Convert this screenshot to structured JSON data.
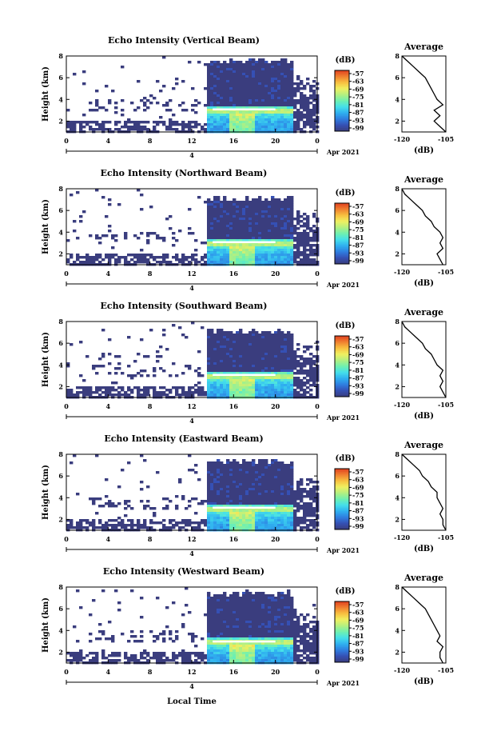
{
  "colors": {
    "background": "#3a3d7e",
    "colorbar": [
      "#3a3d7e",
      "#3550b4",
      "#2f7fe0",
      "#2fb0f0",
      "#45e0ea",
      "#6ff0b0",
      "#b4f080",
      "#f0f060",
      "#f8c040",
      "#f08030",
      "#e04020"
    ]
  },
  "x_axis_label": "Local Time",
  "chart_data": [
    {
      "type": "heatmap",
      "title": "Echo Intensity (Vertical Beam)",
      "ylabel": "Height (km)",
      "yticks": [
        "2",
        "4",
        "6",
        "8"
      ],
      "ylim": [
        1,
        8
      ],
      "xticks": [
        "0",
        "4",
        "8",
        "12",
        "16",
        "20",
        "0"
      ],
      "xlim": [
        0,
        24
      ],
      "date_label": "4",
      "date_suffix": "Apr 2021",
      "colorbar": {
        "unit": "(dB)",
        "ticks": [
          "-57",
          "-63",
          "-69",
          "-75",
          "-81",
          "-87",
          "-93",
          "-99"
        ]
      },
      "bright_layer_km": 3.1,
      "echo_start_hour": 13.5,
      "echo_top_km": 7.5,
      "average": {
        "title": "Average",
        "xlabel": "(dB)",
        "xticks": [
          "-120",
          "-105"
        ],
        "xlim": [
          -120,
          -105
        ],
        "yticks": [
          "2",
          "4",
          "6",
          "8"
        ],
        "height_km": [
          1.0,
          1.5,
          2.0,
          2.5,
          3.0,
          3.5,
          4.0,
          4.5,
          5.0,
          5.5,
          6.0,
          6.5,
          7.0,
          7.5,
          8.0
        ],
        "value_db": [
          -105,
          -107,
          -109,
          -107,
          -109,
          -106,
          -108,
          -109,
          -110,
          -111,
          -112,
          -114,
          -116,
          -118,
          -120
        ]
      }
    },
    {
      "type": "heatmap",
      "title": "Echo Intensity (Northward Beam)",
      "ylabel": "Height (km)",
      "yticks": [
        "2",
        "4",
        "6",
        "8"
      ],
      "ylim": [
        1,
        8
      ],
      "xticks": [
        "0",
        "4",
        "8",
        "12",
        "16",
        "20",
        "0"
      ],
      "xlim": [
        0,
        24
      ],
      "date_label": "4",
      "date_suffix": "Apr 2021",
      "colorbar": {
        "unit": "(dB)",
        "ticks": [
          "-57",
          "-63",
          "-69",
          "-75",
          "-81",
          "-87",
          "-93",
          "-99"
        ]
      },
      "bright_layer_km": 3.1,
      "echo_start_hour": 13.5,
      "echo_top_km": 7.0,
      "average": {
        "title": "Average",
        "xlabel": "(dB)",
        "xticks": [
          "-120",
          "-105"
        ],
        "xlim": [
          -120,
          -105
        ],
        "yticks": [
          "2",
          "4",
          "6",
          "8"
        ],
        "height_km": [
          1.0,
          1.5,
          2.0,
          2.5,
          3.0,
          3.5,
          4.0,
          4.5,
          5.0,
          5.5,
          6.0,
          6.5,
          7.0,
          7.5,
          8.0
        ],
        "value_db": [
          -106,
          -107,
          -108,
          -106,
          -107,
          -106,
          -107,
          -109,
          -110,
          -112,
          -113,
          -115,
          -117,
          -119,
          -120
        ]
      }
    },
    {
      "type": "heatmap",
      "title": "Echo Intensity (Southward Beam)",
      "ylabel": "Height (km)",
      "yticks": [
        "2",
        "4",
        "6",
        "8"
      ],
      "ylim": [
        1,
        8
      ],
      "xticks": [
        "0",
        "4",
        "8",
        "12",
        "16",
        "20",
        "0"
      ],
      "xlim": [
        0,
        24
      ],
      "date_label": "4",
      "date_suffix": "Apr 2021",
      "colorbar": {
        "unit": "(dB)",
        "ticks": [
          "-57",
          "-63",
          "-69",
          "-75",
          "-81",
          "-87",
          "-93",
          "-99"
        ]
      },
      "bright_layer_km": 3.1,
      "echo_start_hour": 13.5,
      "echo_top_km": 7.0,
      "average": {
        "title": "Average",
        "xlabel": "(dB)",
        "xticks": [
          "-120",
          "-105"
        ],
        "xlim": [
          -120,
          -105
        ],
        "yticks": [
          "2",
          "4",
          "6",
          "8"
        ],
        "height_km": [
          1.0,
          1.5,
          2.0,
          2.5,
          3.0,
          3.5,
          4.0,
          4.5,
          5.0,
          5.5,
          6.0,
          6.5,
          7.0,
          7.5,
          8.0
        ],
        "value_db": [
          -105,
          -106,
          -107,
          -106,
          -107,
          -106,
          -108,
          -109,
          -110,
          -112,
          -113,
          -115,
          -117,
          -119,
          -120
        ]
      }
    },
    {
      "type": "heatmap",
      "title": "Echo Intensity (Eastward Beam)",
      "ylabel": "Height (km)",
      "yticks": [
        "2",
        "4",
        "6",
        "8"
      ],
      "ylim": [
        1,
        8
      ],
      "xticks": [
        "0",
        "4",
        "8",
        "12",
        "16",
        "20",
        "0"
      ],
      "xlim": [
        0,
        24
      ],
      "date_label": "4",
      "date_suffix": "Apr 2021",
      "colorbar": {
        "unit": "(dB)",
        "ticks": [
          "-57",
          "-63",
          "-69",
          "-75",
          "-81",
          "-87",
          "-93",
          "-99"
        ]
      },
      "bright_layer_km": 3.1,
      "echo_start_hour": 13.5,
      "echo_top_km": 7.3,
      "average": {
        "title": "Average",
        "xlabel": "(dB)",
        "xticks": [
          "-120",
          "-105"
        ],
        "xlim": [
          -120,
          -105
        ],
        "yticks": [
          "2",
          "4",
          "6",
          "8"
        ],
        "height_km": [
          1.0,
          1.5,
          2.0,
          2.5,
          3.0,
          3.5,
          4.0,
          4.5,
          5.0,
          5.5,
          6.0,
          6.5,
          7.0,
          7.5,
          8.0
        ],
        "value_db": [
          -105,
          -106,
          -106,
          -107,
          -106,
          -107,
          -108,
          -108,
          -110,
          -111,
          -113,
          -114,
          -116,
          -118,
          -120
        ]
      }
    },
    {
      "type": "heatmap",
      "title": "Echo Intensity (Westward Beam)",
      "ylabel": "Height (km)",
      "yticks": [
        "2",
        "4",
        "6",
        "8"
      ],
      "ylim": [
        1,
        8
      ],
      "xticks": [
        "0",
        "4",
        "8",
        "12",
        "16",
        "20",
        "0"
      ],
      "xlim": [
        0,
        24
      ],
      "date_label": "4",
      "date_suffix": "Apr 2021",
      "colorbar": {
        "unit": "(dB)",
        "ticks": [
          "-57",
          "-63",
          "-69",
          "-75",
          "-81",
          "-87",
          "-93",
          "-99"
        ]
      },
      "bright_layer_km": 3.0,
      "echo_start_hour": 13.5,
      "echo_top_km": 7.3,
      "average": {
        "title": "Average",
        "xlabel": "(dB)",
        "xticks": [
          "-120",
          "-105"
        ],
        "xlim": [
          -120,
          -105
        ],
        "yticks": [
          "2",
          "4",
          "6",
          "8"
        ],
        "height_km": [
          1.0,
          1.5,
          2.0,
          2.5,
          3.0,
          3.5,
          4.0,
          4.5,
          5.0,
          5.5,
          6.0,
          6.5,
          7.0,
          7.5,
          8.0
        ],
        "value_db": [
          -106,
          -107,
          -107,
          -106,
          -108,
          -107,
          -108,
          -109,
          -110,
          -111,
          -112,
          -114,
          -116,
          -118,
          -120
        ]
      }
    }
  ]
}
